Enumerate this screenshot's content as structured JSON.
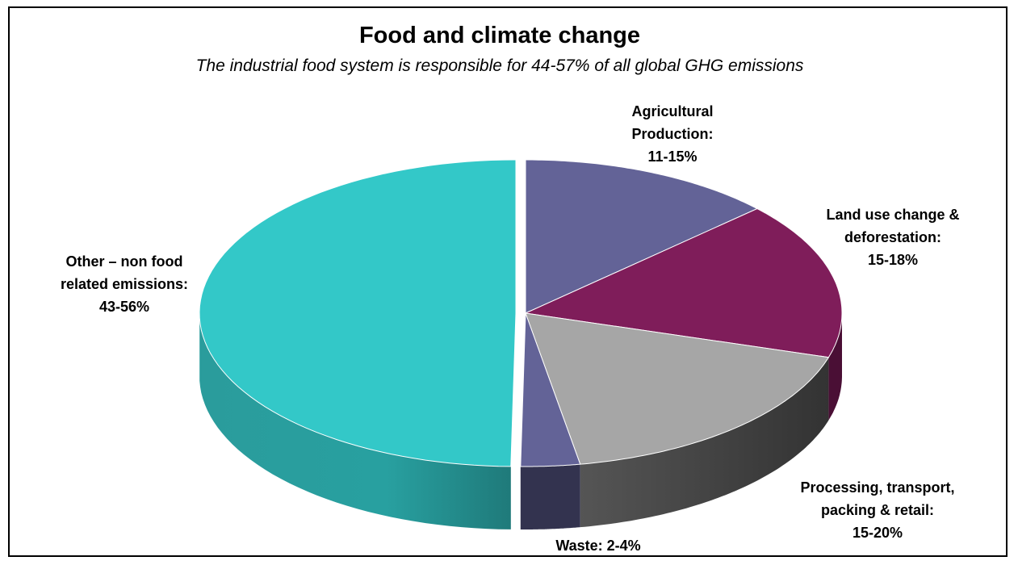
{
  "chart_data": {
    "type": "pie",
    "title": "Food and climate change",
    "subtitle": "The industrial food system is responsible for 44-57%  of all global GHG emissions",
    "slices": [
      {
        "key": "agri",
        "label_lines": [
          "Agricultural",
          "Production:",
          "11-15%"
        ],
        "range": "11-15%",
        "value": 13,
        "color": "#636397",
        "side_color": "#3c3c66"
      },
      {
        "key": "land",
        "label_lines": [
          "Land use change &",
          "deforestation:",
          "15-18%"
        ],
        "range": "15-18%",
        "value": 16.5,
        "color": "#7f1d5a",
        "side_color": "#4a0f35"
      },
      {
        "key": "proc",
        "label_lines": [
          "Processing, transport,",
          "packing & retail:",
          "15-20%"
        ],
        "range": "15-20%",
        "value": 17.5,
        "color": "#a6a6a6",
        "side_color": "#4a4a4a"
      },
      {
        "key": "waste",
        "label_lines": [
          "Waste: 2-4%"
        ],
        "range": "2-4%",
        "value": 3,
        "color": "#636397",
        "side_color": "#33334f"
      },
      {
        "key": "other",
        "label_lines": [
          "Other – non food",
          "related emissions:",
          "43-56%"
        ],
        "range": "43-56%",
        "value": 49.5,
        "color": "#33c8c8",
        "side_color": "#2a9c9c",
        "exploded": true
      }
    ],
    "legend": "none"
  }
}
